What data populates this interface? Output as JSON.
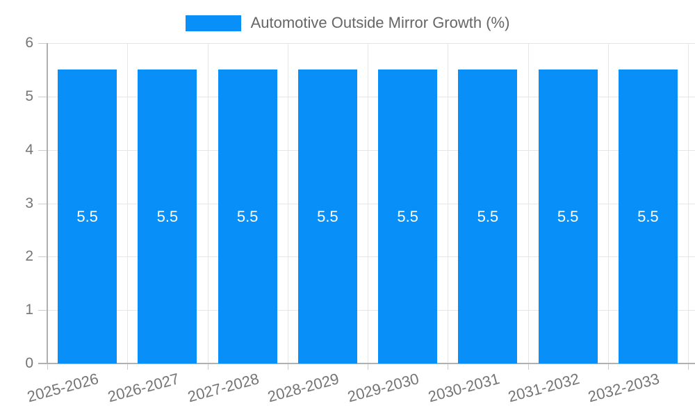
{
  "legend": {
    "label": "Automotive Outside Mirror Growth (%)"
  },
  "chart_data": {
    "type": "bar",
    "title": "Automotive Outside Mirror Growth (%)",
    "categories": [
      "2025-2026",
      "2026-2027",
      "2027-2028",
      "2028-2029",
      "2029-2030",
      "2030-2031",
      "2031-2032",
      "2032-2033"
    ],
    "values": [
      5.5,
      5.5,
      5.5,
      5.5,
      5.5,
      5.5,
      5.5,
      5.5
    ],
    "bar_labels": [
      "5.5",
      "5.5",
      "5.5",
      "5.5",
      "5.5",
      "5.5",
      "5.5",
      "5.5"
    ],
    "xlabel": "",
    "ylabel": "",
    "ylim": [
      0,
      6
    ],
    "yticks": [
      0,
      1,
      2,
      3,
      4,
      5,
      6
    ],
    "ytick_labels": [
      "0",
      "1",
      "2",
      "3",
      "4",
      "5",
      "6"
    ],
    "grid": true,
    "legend_position": "top",
    "x_label_rotation_deg": -15,
    "colors": {
      "bar": "#0890f8",
      "bar_label": "#ffffff",
      "axis_text": "#757575",
      "legend_text": "#666666",
      "gridline": "#e6e6e6",
      "axis_line": "#b0b0b0",
      "tick": "#cccccc"
    }
  }
}
